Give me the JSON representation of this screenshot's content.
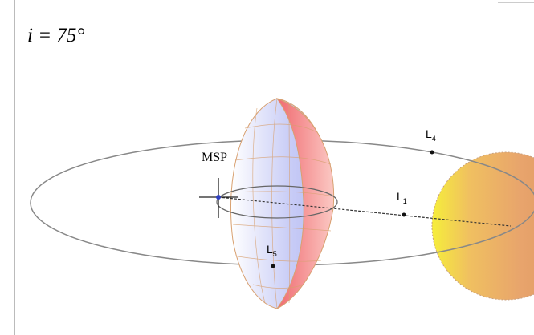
{
  "title": "i = 75°",
  "labels": {
    "msp": "MSP",
    "l1": {
      "main": "L",
      "sub": "1"
    },
    "l4": {
      "main": "L",
      "sub": "4"
    },
    "l5": {
      "main": "L",
      "sub": "5"
    }
  }
}
